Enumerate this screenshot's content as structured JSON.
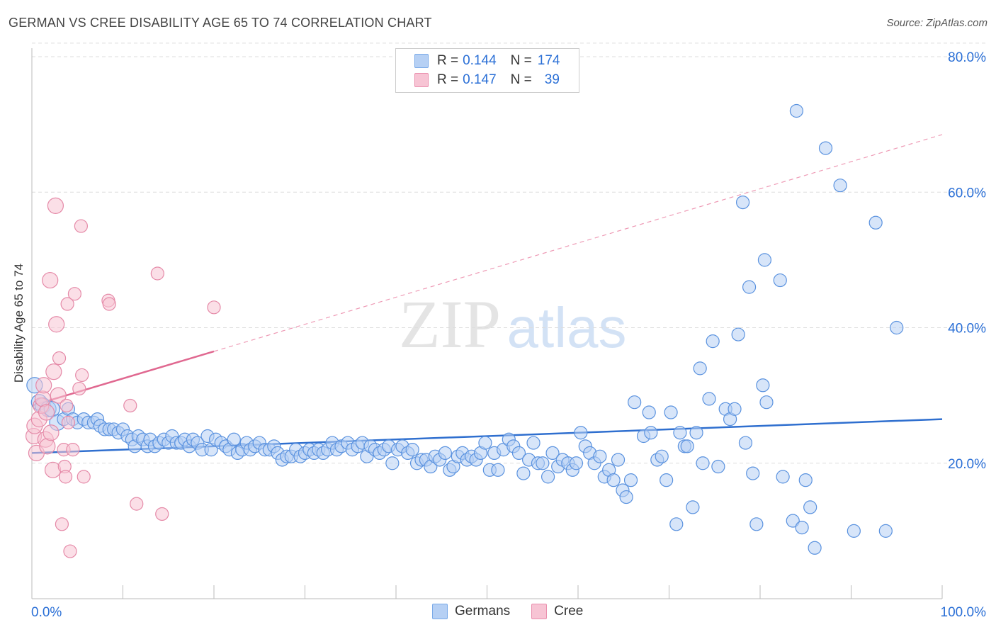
{
  "title": "GERMAN VS CREE DISABILITY AGE 65 TO 74 CORRELATION CHART",
  "source": "Source: ZipAtlas.com",
  "watermark": {
    "zip": "ZIP",
    "atlas": "atlas"
  },
  "legend": {
    "r_label": "R =",
    "n_label": "N =",
    "rows": [
      {
        "name": "Germans",
        "r": "0.144",
        "n": "174",
        "color": "#7aaae8",
        "fill": "#b6d0f4"
      },
      {
        "name": "Cree",
        "r": "0.147",
        "n": "39",
        "color": "#ea8fae",
        "fill": "#f7c4d4"
      }
    ]
  },
  "chart_data": {
    "type": "scatter",
    "title": "GERMAN VS CREE DISABILITY AGE 65 TO 74 CORRELATION CHART",
    "xlabel": "",
    "ylabel": "Disability Age 65 to 74",
    "xlim": [
      0,
      100
    ],
    "ylim": [
      0,
      82
    ],
    "x_tick_labels": [
      "0.0%",
      "100.0%"
    ],
    "y_ticks": [
      20,
      40,
      60,
      80
    ],
    "y_tick_labels": [
      "20.0%",
      "40.0%",
      "60.0%",
      "80.0%"
    ],
    "grid": "horizontal dashed",
    "legend_position": "top-center and bottom",
    "series": [
      {
        "name": "Germans",
        "color": "#2f6fcf",
        "point_color": "#7aaae8",
        "trend": {
          "x0": 0,
          "y0": 21.5,
          "x1": 100,
          "y1": 26.5
        },
        "points": [
          [
            0.3,
            31.5
          ],
          [
            0.8,
            29
          ],
          [
            1.2,
            28.5
          ],
          [
            1.8,
            28
          ],
          [
            2.2,
            28
          ],
          [
            2.8,
            26
          ],
          [
            3.5,
            26.5
          ],
          [
            4,
            28
          ],
          [
            4.5,
            26.5
          ],
          [
            5,
            26
          ],
          [
            5.7,
            26.5
          ],
          [
            6.2,
            26
          ],
          [
            6.8,
            26
          ],
          [
            7.2,
            26.5
          ],
          [
            7.5,
            25.5
          ],
          [
            8,
            25
          ],
          [
            8.5,
            25
          ],
          [
            9,
            25
          ],
          [
            9.5,
            24.5
          ],
          [
            10,
            25
          ],
          [
            10.5,
            24
          ],
          [
            11,
            23.5
          ],
          [
            11.3,
            22.5
          ],
          [
            11.7,
            24
          ],
          [
            12.2,
            23.5
          ],
          [
            12.7,
            22.5
          ],
          [
            13,
            23.5
          ],
          [
            13.5,
            22.5
          ],
          [
            14,
            23
          ],
          [
            14.5,
            23.5
          ],
          [
            15,
            23
          ],
          [
            15.4,
            24
          ],
          [
            15.9,
            23
          ],
          [
            16.4,
            23
          ],
          [
            16.8,
            23.5
          ],
          [
            17.3,
            22.5
          ],
          [
            17.7,
            23.5
          ],
          [
            18.2,
            23
          ],
          [
            18.7,
            22
          ],
          [
            19.3,
            24
          ],
          [
            19.7,
            22
          ],
          [
            20.2,
            23.5
          ],
          [
            20.8,
            23
          ],
          [
            21.3,
            22.5
          ],
          [
            21.7,
            22
          ],
          [
            22.2,
            23.5
          ],
          [
            22.6,
            21.5
          ],
          [
            23.1,
            22
          ],
          [
            23.6,
            23
          ],
          [
            24,
            22
          ],
          [
            24.5,
            22.5
          ],
          [
            25,
            23
          ],
          [
            25.6,
            22
          ],
          [
            26.1,
            22
          ],
          [
            26.6,
            22.5
          ],
          [
            27,
            21.5
          ],
          [
            27.5,
            20.5
          ],
          [
            28,
            21
          ],
          [
            28.5,
            21
          ],
          [
            29,
            22
          ],
          [
            29.5,
            21
          ],
          [
            30,
            21.5
          ],
          [
            30.5,
            22
          ],
          [
            31,
            21.5
          ],
          [
            31.5,
            22
          ],
          [
            32,
            21.5
          ],
          [
            32.5,
            22
          ],
          [
            33,
            23
          ],
          [
            33.5,
            22
          ],
          [
            34,
            22.5
          ],
          [
            34.7,
            23
          ],
          [
            35.2,
            22
          ],
          [
            35.8,
            22.5
          ],
          [
            36.3,
            23
          ],
          [
            36.8,
            21
          ],
          [
            37.2,
            22.5
          ],
          [
            37.7,
            22
          ],
          [
            38.2,
            21.5
          ],
          [
            38.7,
            22
          ],
          [
            39.2,
            22.5
          ],
          [
            39.6,
            20
          ],
          [
            40.2,
            22
          ],
          [
            40.7,
            22.5
          ],
          [
            41.3,
            21.5
          ],
          [
            41.8,
            22
          ],
          [
            42.3,
            20
          ],
          [
            42.8,
            20.5
          ],
          [
            43.3,
            20.5
          ],
          [
            43.8,
            19.5
          ],
          [
            44.3,
            21
          ],
          [
            44.8,
            20.5
          ],
          [
            45.4,
            21.5
          ],
          [
            45.9,
            19
          ],
          [
            46.3,
            19.5
          ],
          [
            46.8,
            21
          ],
          [
            47.3,
            21.5
          ],
          [
            47.8,
            20.5
          ],
          [
            48.3,
            21
          ],
          [
            48.8,
            20.5
          ],
          [
            49.3,
            21.5
          ],
          [
            49.8,
            23
          ],
          [
            50.3,
            19
          ],
          [
            50.8,
            21.5
          ],
          [
            51.2,
            19
          ],
          [
            51.8,
            22
          ],
          [
            52.4,
            23.5
          ],
          [
            52.9,
            22.5
          ],
          [
            53.5,
            21.5
          ],
          [
            54,
            18.5
          ],
          [
            54.6,
            20.5
          ],
          [
            55.1,
            23
          ],
          [
            55.6,
            20
          ],
          [
            56.1,
            20
          ],
          [
            56.7,
            18
          ],
          [
            57.2,
            21.5
          ],
          [
            57.8,
            19.5
          ],
          [
            58.3,
            20.5
          ],
          [
            58.9,
            20
          ],
          [
            59.4,
            19
          ],
          [
            59.8,
            20
          ],
          [
            60.3,
            24.5
          ],
          [
            60.8,
            22.5
          ],
          [
            61.3,
            21.5
          ],
          [
            61.8,
            20
          ],
          [
            62.4,
            21
          ],
          [
            62.9,
            18
          ],
          [
            63.4,
            19
          ],
          [
            63.9,
            17.5
          ],
          [
            64.4,
            20.5
          ],
          [
            64.9,
            16
          ],
          [
            65.3,
            15
          ],
          [
            65.8,
            17.5
          ],
          [
            66.2,
            29
          ],
          [
            67.2,
            24
          ],
          [
            67.8,
            27.5
          ],
          [
            68,
            24.5
          ],
          [
            68.7,
            20.5
          ],
          [
            69.2,
            21
          ],
          [
            69.7,
            17.5
          ],
          [
            70.2,
            27.5
          ],
          [
            70.8,
            11
          ],
          [
            71.2,
            24.5
          ],
          [
            71.7,
            22.5
          ],
          [
            72,
            22.5
          ],
          [
            72.6,
            13.5
          ],
          [
            73,
            24.5
          ],
          [
            73.4,
            34
          ],
          [
            73.7,
            20
          ],
          [
            74.4,
            29.5
          ],
          [
            74.8,
            38
          ],
          [
            75.4,
            19.5
          ],
          [
            76.2,
            28
          ],
          [
            76.7,
            26.5
          ],
          [
            77.2,
            28
          ],
          [
            77.6,
            39
          ],
          [
            78.1,
            58.5
          ],
          [
            78.4,
            23
          ],
          [
            78.8,
            46
          ],
          [
            79.2,
            18.5
          ],
          [
            79.6,
            11
          ],
          [
            80.3,
            31.5
          ],
          [
            80.5,
            50
          ],
          [
            80.7,
            29
          ],
          [
            82.2,
            47
          ],
          [
            82.5,
            18
          ],
          [
            83.6,
            11.5
          ],
          [
            84,
            72
          ],
          [
            84.6,
            10.5
          ],
          [
            85,
            17.5
          ],
          [
            85.5,
            13.5
          ],
          [
            86,
            7.5
          ],
          [
            87.2,
            66.5
          ],
          [
            88.8,
            61
          ],
          [
            90.3,
            10
          ],
          [
            92.7,
            55.5
          ],
          [
            93.8,
            10
          ],
          [
            95,
            40
          ]
        ]
      },
      {
        "name": "Cree",
        "color": "#e06890",
        "point_color": "#ea8fae",
        "trend": {
          "x0": 0,
          "y0": 28.5,
          "x1": 20,
          "y1": 36.5
        },
        "trend_extension": {
          "x0": 20,
          "y0": 36.5,
          "x1": 100,
          "y1": 68.5
        },
        "points": [
          [
            0.2,
            24
          ],
          [
            0.3,
            25.5
          ],
          [
            0.5,
            21.5
          ],
          [
            0.8,
            26.5
          ],
          [
            1,
            28.5
          ],
          [
            1.2,
            29.5
          ],
          [
            1.3,
            31.5
          ],
          [
            1.5,
            23.5
          ],
          [
            1.6,
            27.5
          ],
          [
            1.7,
            22.5
          ],
          [
            2,
            47
          ],
          [
            2.1,
            24.5
          ],
          [
            2.3,
            19
          ],
          [
            2.4,
            33.5
          ],
          [
            2.6,
            58
          ],
          [
            2.7,
            40.5
          ],
          [
            2.9,
            30
          ],
          [
            3,
            35.5
          ],
          [
            3.3,
            11
          ],
          [
            3.5,
            22
          ],
          [
            3.6,
            19.5
          ],
          [
            3.7,
            18
          ],
          [
            3.8,
            28.5
          ],
          [
            3.9,
            43.5
          ],
          [
            4,
            26
          ],
          [
            4.2,
            7
          ],
          [
            4.5,
            22
          ],
          [
            4.7,
            45
          ],
          [
            5.2,
            31
          ],
          [
            5.4,
            55
          ],
          [
            5.5,
            33
          ],
          [
            5.7,
            18
          ],
          [
            8.4,
            44
          ],
          [
            8.5,
            43.5
          ],
          [
            10.8,
            28.5
          ],
          [
            11.5,
            14
          ],
          [
            13.8,
            48
          ],
          [
            14.3,
            12.5
          ],
          [
            20,
            43
          ]
        ]
      }
    ]
  }
}
